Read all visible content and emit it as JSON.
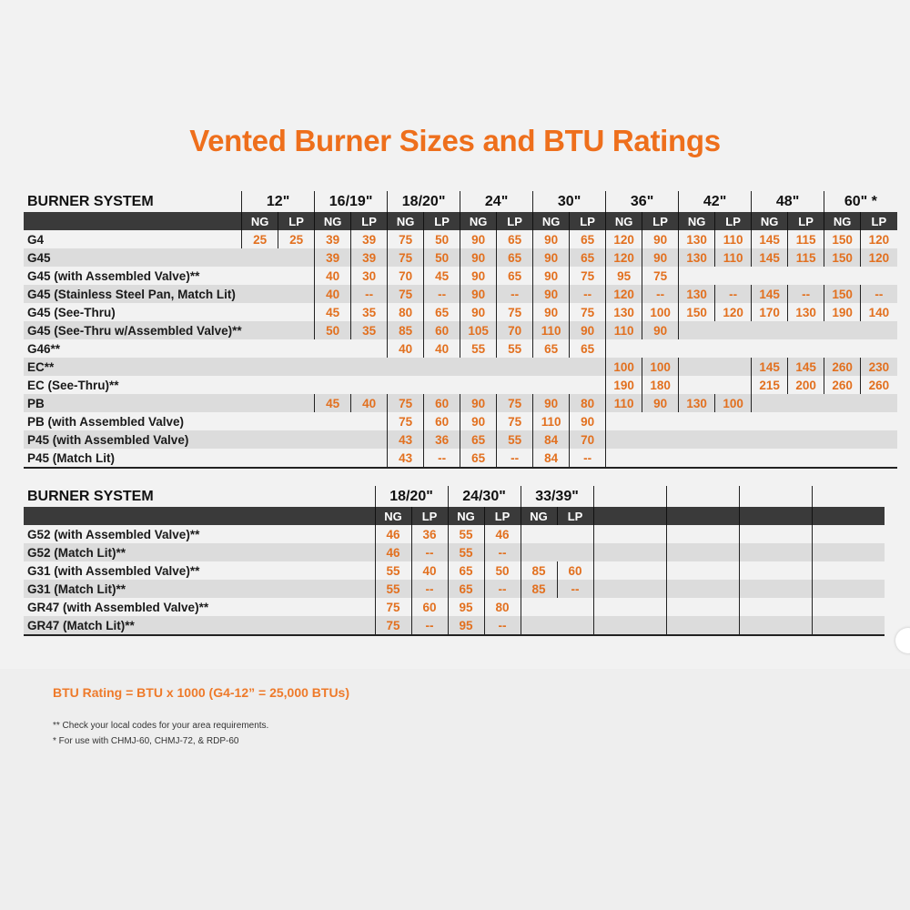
{
  "title": "Vented Burner Sizes and BTU Ratings",
  "colors": {
    "accent": "#ee6f1c",
    "header_bar": "#3a3a3a",
    "alt_row": "#dcdcdc"
  },
  "tables": [
    {
      "system_label": "BURNER SYSTEM",
      "groups": [
        "12\"",
        "16/19\"",
        "18/20\"",
        "24\"",
        "30\"",
        "36\"",
        "42\"",
        "48\"",
        "60\" *"
      ],
      "sub": [
        "NG",
        "LP"
      ],
      "rows": [
        {
          "label": "G4",
          "values": [
            "25",
            "25",
            "39",
            "39",
            "75",
            "50",
            "90",
            "65",
            "90",
            "65",
            "120",
            "90",
            "130",
            "110",
            "145",
            "115",
            "150",
            "120"
          ]
        },
        {
          "label": "G45",
          "values": [
            null,
            null,
            "39",
            "39",
            "75",
            "50",
            "90",
            "65",
            "90",
            "65",
            "120",
            "90",
            "130",
            "110",
            "145",
            "115",
            "150",
            "120"
          ]
        },
        {
          "label": "G45 (with Assembled Valve)**",
          "values": [
            null,
            null,
            "40",
            "30",
            "70",
            "45",
            "90",
            "65",
            "90",
            "75",
            "95",
            "75",
            null,
            null,
            null,
            null,
            null,
            null
          ]
        },
        {
          "label": "G45 (Stainless Steel Pan, Match Lit)",
          "values": [
            null,
            null,
            "40",
            "--",
            "75",
            "--",
            "90",
            "--",
            "90",
            "--",
            "120",
            "--",
            "130",
            "--",
            "145",
            "--",
            "150",
            "--"
          ]
        },
        {
          "label": "G45 (See-Thru)",
          "values": [
            null,
            null,
            "45",
            "35",
            "80",
            "65",
            "90",
            "75",
            "90",
            "75",
            "130",
            "100",
            "150",
            "120",
            "170",
            "130",
            "190",
            "140"
          ]
        },
        {
          "label": "G45 (See-Thru w/Assembled Valve)**",
          "values": [
            null,
            null,
            "50",
            "35",
            "85",
            "60",
            "105",
            "70",
            "110",
            "90",
            "110",
            "90",
            null,
            null,
            null,
            null,
            null,
            null
          ]
        },
        {
          "label": "G46**",
          "values": [
            null,
            null,
            null,
            null,
            "40",
            "40",
            "55",
            "55",
            "65",
            "65",
            null,
            null,
            null,
            null,
            null,
            null,
            null,
            null
          ]
        },
        {
          "label": "EC**",
          "values": [
            null,
            null,
            null,
            null,
            null,
            null,
            null,
            null,
            null,
            null,
            "100",
            "100",
            null,
            null,
            "145",
            "145",
            "260",
            "230"
          ]
        },
        {
          "label": "EC (See-Thru)**",
          "values": [
            null,
            null,
            null,
            null,
            null,
            null,
            null,
            null,
            null,
            null,
            "190",
            "180",
            null,
            null,
            "215",
            "200",
            "260",
            "260"
          ]
        },
        {
          "label": "PB",
          "values": [
            null,
            null,
            "45",
            "40",
            "75",
            "60",
            "90",
            "75",
            "90",
            "80",
            "110",
            "90",
            "130",
            "100",
            null,
            null,
            null,
            null
          ]
        },
        {
          "label": "PB (with Assembled Valve)",
          "values": [
            null,
            null,
            null,
            null,
            "75",
            "60",
            "90",
            "75",
            "110",
            "90",
            null,
            null,
            null,
            null,
            null,
            null,
            null,
            null
          ]
        },
        {
          "label": "P45 (with Assembled Valve)",
          "values": [
            null,
            null,
            null,
            null,
            "43",
            "36",
            "65",
            "55",
            "84",
            "70",
            null,
            null,
            null,
            null,
            null,
            null,
            null,
            null
          ]
        },
        {
          "label": "P45 (Match Lit)",
          "values": [
            null,
            null,
            null,
            null,
            "43",
            "--",
            "65",
            "--",
            "84",
            "--",
            null,
            null,
            null,
            null,
            null,
            null,
            null,
            null
          ]
        }
      ]
    },
    {
      "system_label": "BURNER SYSTEM",
      "groups": [
        "18/20\"",
        "24/30\"",
        "33/39\"",
        "",
        "",
        "",
        ""
      ],
      "sub": [
        "NG",
        "LP"
      ],
      "rows": [
        {
          "label": "G52 (with Assembled Valve)**",
          "values": [
            "46",
            "36",
            "55",
            "46",
            null,
            null
          ]
        },
        {
          "label": "G52 (Match Lit)**",
          "values": [
            "46",
            "--",
            "55",
            "--",
            null,
            null
          ]
        },
        {
          "label": "G31 (with Assembled Valve)**",
          "values": [
            "55",
            "40",
            "65",
            "50",
            "85",
            "60"
          ]
        },
        {
          "label": "G31 (Match Lit)**",
          "values": [
            "55",
            "--",
            "65",
            "--",
            "85",
            "--"
          ]
        },
        {
          "label": "GR47 (with Assembled Valve)**",
          "values": [
            "75",
            "60",
            "95",
            "80",
            null,
            null
          ]
        },
        {
          "label": "GR47 (Match Lit)**",
          "values": [
            "75",
            "--",
            "95",
            "--",
            null,
            null
          ]
        }
      ]
    }
  ],
  "footer": {
    "btu_note": "BTU Rating = BTU x 1000 (G4-12” = 25,000 BTUs)",
    "note1": "** Check your local codes for your area requirements.",
    "note2": "* For use with CHMJ-60, CHMJ-72, & RDP-60"
  }
}
